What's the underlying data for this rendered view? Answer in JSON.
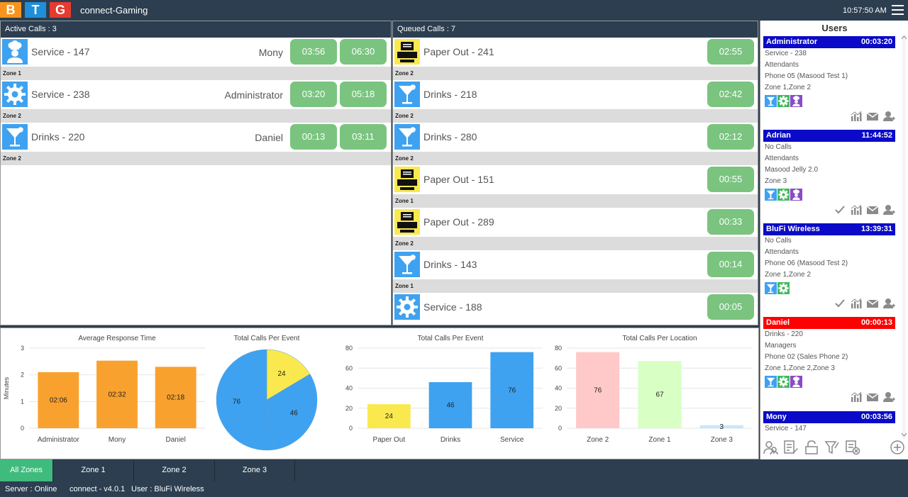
{
  "header": {
    "logo_letters": [
      "B",
      "T",
      "G"
    ],
    "logo_colors": [
      "#f7941d",
      "#1e8fd8",
      "#e63b2e"
    ],
    "app_title": "connect-Gaming",
    "clock": "10:57:50 AM"
  },
  "active_calls": {
    "title": "Active Calls : 3",
    "rows": [
      {
        "icon": "chef-icon",
        "title": "Service - 147",
        "user": "Mony",
        "t1": "03:56",
        "t2": "06:30",
        "zone": "Zone 1"
      },
      {
        "icon": "gear-icon",
        "title": "Service - 238",
        "user": "Administrator",
        "t1": "03:20",
        "t2": "05:18",
        "zone": "Zone 2"
      },
      {
        "icon": "cocktail-icon",
        "title": "Drinks - 220",
        "user": "Daniel",
        "t1": "00:13",
        "t2": "03:11",
        "zone": "Zone 2"
      }
    ]
  },
  "queued_calls": {
    "title": "Queued Calls : 7",
    "rows": [
      {
        "icon": "printer-icon",
        "title": "Paper Out - 241",
        "t1": "02:55",
        "zone": "Zone 2"
      },
      {
        "icon": "cocktail-icon",
        "title": "Drinks - 218",
        "t1": "02:42",
        "zone": "Zone 2"
      },
      {
        "icon": "cocktail-icon",
        "title": "Drinks - 280",
        "t1": "02:12",
        "zone": "Zone 2"
      },
      {
        "icon": "printer-icon",
        "title": "Paper Out - 151",
        "t1": "00:55",
        "zone": "Zone 1"
      },
      {
        "icon": "printer-icon",
        "title": "Paper Out - 289",
        "t1": "00:33",
        "zone": "Zone 2"
      },
      {
        "icon": "cocktail-icon",
        "title": "Drinks - 143",
        "t1": "00:14",
        "zone": "Zone 1"
      },
      {
        "icon": "gear-icon",
        "title": "Service - 188",
        "t1": "00:05",
        "zone": ""
      }
    ]
  },
  "chart_data": [
    {
      "type": "bar",
      "title": "Average Response Time",
      "ylabel": "Minutes",
      "categories": [
        "Administrator",
        "Mony",
        "Daniel"
      ],
      "values": [
        2.1,
        2.53,
        2.3
      ],
      "labels": [
        "02:06",
        "02:32",
        "02:18"
      ],
      "ylim": [
        0,
        3
      ],
      "yticks": [
        0,
        1,
        2,
        3
      ],
      "colors": [
        "#f9a12e",
        "#f9a12e",
        "#f9a12e"
      ]
    },
    {
      "type": "pie",
      "title": "Total Calls Per Event",
      "categories": [
        "Paper Out",
        "Drinks",
        "Service"
      ],
      "values": [
        24,
        46,
        76
      ],
      "colors": [
        "#f9e94e",
        "#3fa2f0",
        "#3fa2f0"
      ]
    },
    {
      "type": "bar",
      "title": "Total Calls Per Event",
      "categories": [
        "Paper Out",
        "Drinks",
        "Service"
      ],
      "values": [
        24,
        46,
        76
      ],
      "ylim": [
        0,
        80
      ],
      "yticks": [
        0,
        20,
        40,
        60,
        80
      ],
      "colors": [
        "#f9e94e",
        "#3fa2f0",
        "#3fa2f0"
      ]
    },
    {
      "type": "bar",
      "title": "Total Calls Per Location",
      "categories": [
        "Zone 2",
        "Zone 1",
        "Zone 3"
      ],
      "values": [
        76,
        67,
        3
      ],
      "ylim": [
        0,
        80
      ],
      "yticks": [
        0,
        20,
        40,
        60,
        80
      ],
      "colors": [
        "#ffc9c9",
        "#d8ffc4",
        "#c9e7fa"
      ]
    }
  ],
  "users": {
    "title": "Users",
    "cards": [
      {
        "name": "Administrator",
        "time": "00:03:20",
        "color": "#0a0ac8",
        "lines": [
          "Service - 238",
          "Attendants",
          "Phone 05 (Masood Test 1)",
          "Zone 1,Zone 2"
        ],
        "badges": [
          "cocktail-icon",
          "gear-icon",
          "chef-icon"
        ],
        "actions": [
          "stats-icon",
          "mail-icon",
          "user-assign-icon"
        ]
      },
      {
        "name": "Adrian",
        "time": "11:44:52",
        "color": "#0a0ac8",
        "lines": [
          "No Calls",
          "Attendants",
          "Masood Jelly 2.0",
          "Zone 3"
        ],
        "badges": [
          "cocktail-icon",
          "gear-icon",
          "chef-icon"
        ],
        "actions": [
          "check-icon",
          "stats-icon",
          "mail-icon",
          "user-assign-icon"
        ]
      },
      {
        "name": "BluFi Wireless",
        "time": "13:39:31",
        "color": "#0a0ac8",
        "lines": [
          "No Calls",
          "Attendants",
          "Phone 06 (Masood Test 2)",
          "Zone 1,Zone 2"
        ],
        "badges": [
          "cocktail-icon",
          "gear-icon"
        ],
        "actions": [
          "check-icon",
          "stats-icon",
          "mail-icon",
          "user-assign-icon"
        ]
      },
      {
        "name": "Daniel",
        "time": "00:00:13",
        "color": "#ff0000",
        "lines": [
          "Drinks - 220",
          "Managers",
          "Phone 02 (Sales Phone 2)",
          "Zone 1,Zone 2,Zone 3"
        ],
        "badges": [
          "cocktail-icon",
          "gear-icon",
          "chef-icon"
        ],
        "actions": [
          "stats-icon",
          "mail-icon",
          "user-assign-icon"
        ]
      },
      {
        "name": "Mony",
        "time": "00:03:56",
        "color": "#0a0ac8",
        "lines": [
          "Service - 147"
        ],
        "badges": [],
        "actions": []
      }
    ],
    "footer_icons": [
      "users-icon",
      "list-edit-icon",
      "lock-icon",
      "filter-icon",
      "remove-list-icon",
      "add-icon"
    ]
  },
  "tabs": [
    "All Zones",
    "Zone 1",
    "Zone 2",
    "Zone 3"
  ],
  "status": {
    "server": "Server : Online",
    "version": "connect - v4.0.1",
    "user": "User : BluFi Wireless"
  }
}
